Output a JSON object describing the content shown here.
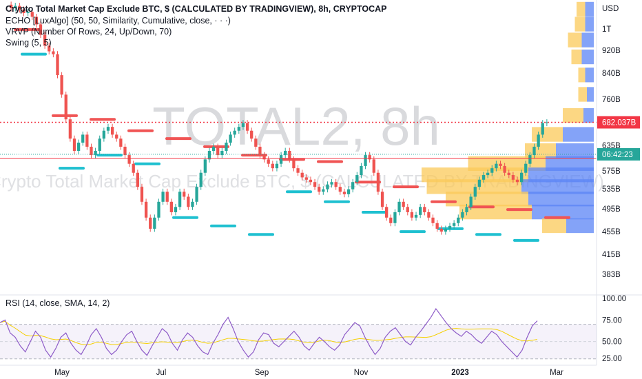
{
  "watermark": {
    "symbol": "TOTAL2, 8h",
    "description": "Crypto Total Market Cap Exclude BTC, $ (CALCULATED BY TRADINGVIEW)"
  },
  "legend": {
    "title": "Crypto Total Market Cap Exclude BTC, $ (CALCULATED BY TRADINGVIEW), 8h, CRYPTOCAP",
    "line1": "ECHO [LuxAlgo] (50, 50, Similarity, Cumulative, close, · · ·)",
    "line2": "VRVP (Number Of Rows, 24, Up/Down, 70)",
    "line3": "Swing (5, 5)"
  },
  "rsi": {
    "legend": "RSI (14, close, SMA, 14, 2)",
    "axis_labels": [
      "100.00",
      "75.00",
      "50.00",
      "25.00"
    ]
  },
  "price_axis": {
    "labels": [
      "USD",
      "1T",
      "920B",
      "840B",
      "760B",
      "635B",
      "575B",
      "535B",
      "495B",
      "455B",
      "415B",
      "383B"
    ],
    "price_badge": "682.037B",
    "countdown_badge": "06:42:23"
  },
  "time_axis": {
    "labels": [
      "May",
      "Jul",
      "Sep",
      "Nov",
      "2023",
      "Mar"
    ]
  },
  "colors": {
    "up": "#26a69a",
    "down": "#ef5350",
    "resistance": "#f05454",
    "support": "#1ec0d0",
    "vp_up": "#fbc95a",
    "vp_down": "#5b84f5",
    "rsi_line": "#8e5cc8",
    "rsi_ma": "#f5d000",
    "price_line": "#f23645",
    "countdown_badge": "#26a69a"
  },
  "chart_data": {
    "type": "candlestick",
    "title": "Crypto Total Market Cap Exclude BTC, $ (CALCULATED BY TRADINGVIEW), 8h, CRYPTOCAP",
    "y_scale": "log",
    "ylim_billions": [
      355,
      1100
    ],
    "x_labels": [
      "May",
      "Jul",
      "Sep",
      "Nov",
      "2023",
      "Mar"
    ],
    "price_series_billions": [
      1080,
      1065,
      1075,
      1060,
      1045,
      1050,
      1030,
      1000,
      960,
      920,
      900,
      890,
      820,
      760,
      690,
      640,
      610,
      630,
      650,
      620,
      600,
      610,
      640,
      660,
      670,
      650,
      640,
      620,
      600,
      580,
      560,
      530,
      500,
      470,
      450,
      470,
      500,
      520,
      500,
      480,
      490,
      520,
      510,
      490,
      500,
      530,
      560,
      590,
      610,
      620,
      600,
      610,
      630,
      650,
      660,
      670,
      680,
      660,
      640,
      620,
      600,
      590,
      580,
      570,
      580,
      600,
      610,
      590,
      570,
      560,
      550,
      545,
      540,
      530,
      520,
      525,
      535,
      540,
      530,
      520,
      515,
      525,
      540,
      555,
      575,
      600,
      590,
      560,
      520,
      490,
      470,
      460,
      480,
      500,
      490,
      480,
      470,
      475,
      490,
      480,
      470,
      460,
      450,
      445,
      450,
      455,
      460,
      470,
      480,
      490,
      510,
      530,
      545,
      555,
      560,
      570,
      580,
      575,
      560,
      555,
      545,
      540,
      560,
      580,
      600,
      620,
      650,
      680,
      682
    ],
    "current_price_billions": 682.037,
    "swing_resistance_billions": [
      980,
      700,
      690,
      660,
      640,
      620,
      600,
      590,
      585,
      540,
      530,
      500,
      490,
      485,
      470
    ],
    "swing_support_billions": [
      890,
      570,
      600,
      580,
      470,
      455,
      440,
      520,
      500,
      480,
      445,
      450,
      440,
      430
    ],
    "volume_profile": {
      "rows_billions": [
        1060,
        1000,
        940,
        880,
        820,
        760,
        700,
        650,
        610,
        580,
        555,
        530,
        505,
        480,
        455
      ],
      "up": [
        0.05,
        0.06,
        0.08,
        0.06,
        0.04,
        0.05,
        0.12,
        0.18,
        0.18,
        0.45,
        0.62,
        0.55,
        0.48,
        0.42,
        0.14
      ],
      "down": [
        0.05,
        0.05,
        0.07,
        0.07,
        0.05,
        0.04,
        0.06,
        0.18,
        0.22,
        0.28,
        0.38,
        0.42,
        0.38,
        0.36,
        0.16
      ]
    },
    "rsi": {
      "ylim": [
        25,
        100
      ],
      "upper_band": 70,
      "lower_band": 30,
      "values": [
        72,
        75,
        60,
        55,
        45,
        38,
        50,
        62,
        55,
        40,
        32,
        42,
        55,
        60,
        48,
        40,
        35,
        45,
        58,
        65,
        55,
        42,
        35,
        40,
        50,
        58,
        62,
        50,
        40,
        34,
        45,
        55,
        65,
        60,
        48,
        40,
        52,
        60,
        55,
        45,
        38,
        35,
        48,
        58,
        70,
        78,
        65,
        50,
        40,
        32,
        38,
        52,
        60,
        58,
        48,
        44,
        50,
        56,
        62,
        55,
        45,
        40,
        48,
        55,
        50,
        44,
        40,
        46,
        58,
        65,
        72,
        68,
        55,
        44,
        35,
        42,
        55,
        62,
        66,
        58,
        50,
        46,
        55,
        62,
        70,
        78,
        88,
        80,
        72,
        65,
        60,
        56,
        62,
        58,
        52,
        48,
        55,
        62,
        58,
        50,
        44,
        38,
        32,
        40,
        55,
        68,
        74
      ]
    }
  }
}
